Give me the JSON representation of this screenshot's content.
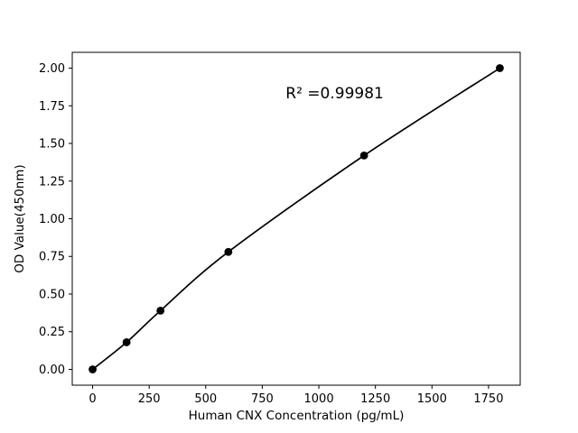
{
  "chart_data": {
    "type": "scatter",
    "title": "",
    "xlabel": "Human CNX Concentration (pg/mL)",
    "ylabel": "OD Value(450nm)",
    "x": [
      0,
      150,
      300,
      600,
      1200,
      1800
    ],
    "y": [
      0.0,
      0.18,
      0.39,
      0.78,
      1.42,
      2.0
    ],
    "xlim": [
      -90,
      1890
    ],
    "ylim": [
      -0.105,
      2.105
    ],
    "xticks": [
      0,
      250,
      500,
      750,
      1000,
      1250,
      1500,
      1750
    ],
    "yticks": [
      0.0,
      0.25,
      0.5,
      0.75,
      1.0,
      1.25,
      1.5,
      1.75,
      2.0
    ],
    "grid": false,
    "legend": null,
    "line_color": "#000000",
    "marker_color": "#000000",
    "background_color": "#ffffff",
    "annotation": {
      "text": "R² =0.99981",
      "x": 1070,
      "y": 1.83
    }
  }
}
